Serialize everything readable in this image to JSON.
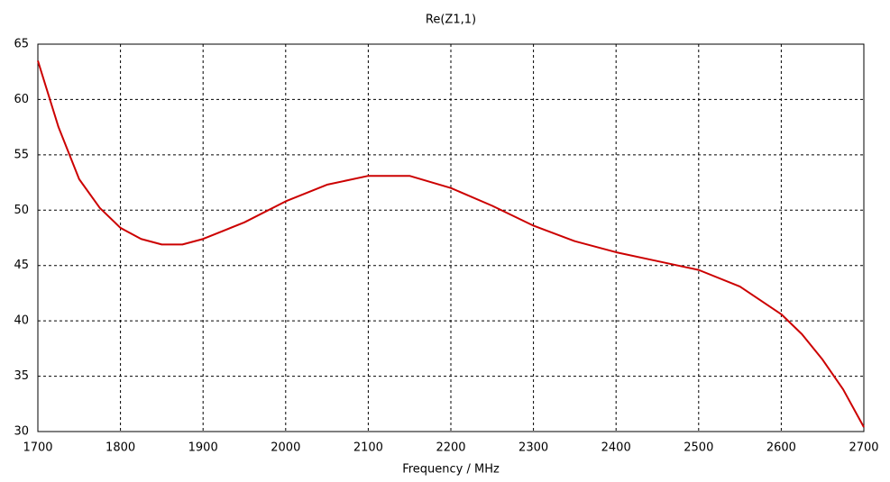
{
  "chart_data": {
    "type": "line",
    "title": "Re(Z1,1)",
    "x_label": "Frequency / MHz",
    "x": [
      1700,
      1725,
      1750,
      1775,
      1800,
      1825,
      1850,
      1875,
      1900,
      1950,
      2000,
      2050,
      2100,
      2150,
      2200,
      2250,
      2300,
      2350,
      2400,
      2450,
      2500,
      2550,
      2600,
      2625,
      2650,
      2675,
      2700
    ],
    "series": [
      {
        "name": "Re(Z1,1)",
        "color": "#cc0000",
        "values": [
          63.5,
          57.5,
          52.8,
          50.2,
          48.4,
          47.4,
          46.9,
          46.9,
          47.4,
          48.9,
          50.8,
          52.3,
          53.1,
          53.1,
          52.0,
          50.4,
          48.6,
          47.2,
          46.2,
          45.4,
          44.6,
          43.1,
          40.6,
          38.8,
          36.5,
          33.8,
          30.4
        ]
      }
    ],
    "xlim": [
      1700,
      2700
    ],
    "xticks": [
      1700,
      1800,
      1900,
      2000,
      2100,
      2200,
      2300,
      2400,
      2500,
      2600,
      2700
    ],
    "ylim": [
      30,
      65
    ],
    "yticks": [
      30,
      35,
      40,
      45,
      50,
      55,
      60,
      65
    ],
    "grid": true
  }
}
